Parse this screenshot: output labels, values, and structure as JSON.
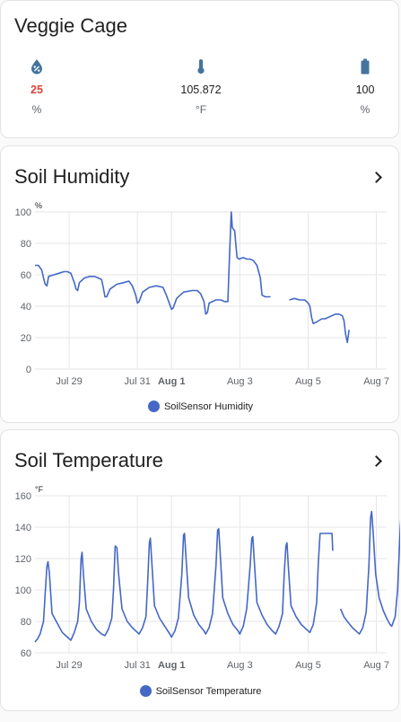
{
  "entities_card": {
    "title": "Veggie Cage",
    "entities": [
      {
        "icon": "water-percent-icon",
        "value": "25",
        "unit": "%",
        "color": "#db4437"
      },
      {
        "icon": "thermometer-icon",
        "value": "105.872",
        "unit": "°F",
        "color": "#212121"
      },
      {
        "icon": "battery-icon",
        "value": "100",
        "unit": "%",
        "color": "#212121"
      }
    ],
    "icon_color": "#44739e"
  },
  "humidity_card": {
    "title": "Soil Humidity",
    "legend": "SoilSensor Humidity",
    "series_color": "#4468c6"
  },
  "temperature_card": {
    "title": "Soil Temperature",
    "legend": "SoilSensor Temperature",
    "series_color": "#4468c6"
  },
  "chart_data": [
    {
      "type": "line",
      "title": "Soil Humidity",
      "ylabel": "%",
      "ylim": [
        0,
        100
      ],
      "yticks": [
        "100",
        "80",
        "60",
        "40",
        "20",
        "0"
      ],
      "xticks": [
        {
          "label": "Jul 29",
          "x": 1.0,
          "bold": false
        },
        {
          "label": "Jul 31",
          "x": 3.0,
          "bold": false
        },
        {
          "label": "Aug 1",
          "x": 4.0,
          "bold": true
        },
        {
          "label": "Aug 3",
          "x": 6.0,
          "bold": false
        },
        {
          "label": "Aug 5",
          "x": 8.0,
          "bold": false
        },
        {
          "label": "Aug 7",
          "x": 10.0,
          "bold": false
        }
      ],
      "xlim": [
        0,
        10.3
      ],
      "grid": true,
      "series": [
        {
          "name": "SoilSensor Humidity",
          "segments": [
            [
              [
                0,
                66
              ],
              [
                0.1,
                66
              ],
              [
                0.2,
                63
              ],
              [
                0.25,
                58
              ],
              [
                0.3,
                54
              ],
              [
                0.35,
                53
              ],
              [
                0.4,
                59
              ],
              [
                0.55,
                60
              ],
              [
                0.7,
                61
              ],
              [
                0.85,
                62
              ],
              [
                0.95,
                62
              ],
              [
                1.05,
                61
              ],
              [
                1.1,
                58
              ],
              [
                1.15,
                55
              ],
              [
                1.2,
                51
              ],
              [
                1.25,
                50
              ],
              [
                1.3,
                55
              ],
              [
                1.45,
                58
              ],
              [
                1.6,
                59
              ],
              [
                1.75,
                59
              ],
              [
                1.85,
                58
              ],
              [
                1.95,
                57
              ],
              [
                2.0,
                52
              ],
              [
                2.05,
                46
              ],
              [
                2.1,
                46
              ],
              [
                2.2,
                51
              ],
              [
                2.4,
                54
              ],
              [
                2.6,
                55
              ],
              [
                2.75,
                56
              ],
              [
                2.85,
                53
              ],
              [
                2.95,
                47
              ],
              [
                3.0,
                42
              ],
              [
                3.05,
                43
              ],
              [
                3.15,
                49
              ],
              [
                3.35,
                52
              ],
              [
                3.55,
                53
              ],
              [
                3.75,
                52
              ],
              [
                3.85,
                47
              ],
              [
                3.95,
                41
              ],
              [
                4.0,
                38
              ],
              [
                4.05,
                39
              ],
              [
                4.15,
                45
              ],
              [
                4.35,
                49
              ],
              [
                4.6,
                50
              ],
              [
                4.75,
                50
              ],
              [
                4.85,
                48
              ],
              [
                4.95,
                43
              ],
              [
                5.0,
                35
              ],
              [
                5.05,
                36
              ],
              [
                5.1,
                42
              ],
              [
                5.3,
                44
              ],
              [
                5.45,
                44
              ],
              [
                5.55,
                43
              ],
              [
                5.65,
                43
              ],
              [
                5.7,
                73
              ],
              [
                5.75,
                100
              ],
              [
                5.78,
                90
              ],
              [
                5.85,
                88
              ],
              [
                5.88,
                80
              ],
              [
                5.92,
                71
              ],
              [
                5.98,
                70
              ],
              [
                6.1,
                71
              ],
              [
                6.2,
                70
              ],
              [
                6.3,
                70
              ],
              [
                6.4,
                69
              ],
              [
                6.5,
                66
              ],
              [
                6.6,
                58
              ],
              [
                6.65,
                47
              ],
              [
                6.75,
                46
              ],
              [
                6.9,
                46
              ]
            ],
            [
              [
                7.45,
                44
              ],
              [
                7.6,
                45
              ],
              [
                7.75,
                44
              ],
              [
                7.9,
                44
              ],
              [
                8.0,
                42
              ],
              [
                8.05,
                40
              ],
              [
                8.1,
                33
              ],
              [
                8.15,
                29
              ],
              [
                8.25,
                30
              ],
              [
                8.4,
                32
              ],
              [
                8.5,
                32
              ],
              [
                8.6,
                33
              ],
              [
                8.7,
                34
              ],
              [
                8.8,
                35
              ],
              [
                8.9,
                35
              ],
              [
                9.0,
                34
              ],
              [
                9.05,
                31
              ],
              [
                9.1,
                22
              ],
              [
                9.15,
                17
              ],
              [
                9.2,
                25
              ]
            ]
          ]
        }
      ]
    },
    {
      "type": "line",
      "title": "Soil Temperature",
      "ylabel": "°F",
      "ylim": [
        60,
        160
      ],
      "yticks": [
        "160",
        "140",
        "120",
        "100",
        "80",
        "60"
      ],
      "xticks": [
        {
          "label": "Jul 29",
          "x": 1.0,
          "bold": false
        },
        {
          "label": "Jul 31",
          "x": 3.0,
          "bold": false
        },
        {
          "label": "Aug 1",
          "x": 4.0,
          "bold": true
        },
        {
          "label": "Aug 3",
          "x": 6.0,
          "bold": false
        },
        {
          "label": "Aug 5",
          "x": 8.0,
          "bold": false
        },
        {
          "label": "Aug 7",
          "x": 10.0,
          "bold": false
        }
      ],
      "xlim": [
        0,
        10.3
      ],
      "grid": true,
      "series": [
        {
          "name": "SoilSensor Temperature",
          "segments": [
            [
              [
                0,
                67
              ],
              [
                0.08,
                69
              ],
              [
                0.15,
                72
              ],
              [
                0.25,
                80
              ],
              [
                0.3,
                98
              ],
              [
                0.35,
                115
              ],
              [
                0.38,
                118
              ],
              [
                0.42,
                111
              ],
              [
                0.5,
                85
              ],
              [
                0.65,
                79
              ],
              [
                0.8,
                73
              ],
              [
                0.95,
                70
              ],
              [
                1.05,
                68
              ],
              [
                1.15,
                73
              ],
              [
                1.25,
                80
              ],
              [
                1.3,
                92
              ],
              [
                1.35,
                120
              ],
              [
                1.38,
                124
              ],
              [
                1.42,
                110
              ],
              [
                1.5,
                88
              ],
              [
                1.65,
                80
              ],
              [
                1.8,
                75
              ],
              [
                1.95,
                72
              ],
              [
                2.05,
                71
              ],
              [
                2.15,
                75
              ],
              [
                2.25,
                82
              ],
              [
                2.3,
                100
              ],
              [
                2.35,
                128
              ],
              [
                2.4,
                127
              ],
              [
                2.45,
                110
              ],
              [
                2.55,
                88
              ],
              [
                2.7,
                80
              ],
              [
                2.85,
                76
              ],
              [
                3.0,
                73
              ],
              [
                3.05,
                72
              ],
              [
                3.15,
                76
              ],
              [
                3.25,
                83
              ],
              [
                3.3,
                105
              ],
              [
                3.35,
                130
              ],
              [
                3.38,
                133
              ],
              [
                3.42,
                118
              ],
              [
                3.5,
                90
              ],
              [
                3.65,
                82
              ],
              [
                3.8,
                77
              ],
              [
                3.95,
                72
              ],
              [
                4.0,
                70
              ],
              [
                4.1,
                74
              ],
              [
                4.2,
                82
              ],
              [
                4.3,
                110
              ],
              [
                4.35,
                135
              ],
              [
                4.38,
                136
              ],
              [
                4.42,
                122
              ],
              [
                4.5,
                95
              ],
              [
                4.65,
                84
              ],
              [
                4.8,
                78
              ],
              [
                4.95,
                74
              ],
              [
                5.0,
                72
              ],
              [
                5.1,
                76
              ],
              [
                5.2,
                85
              ],
              [
                5.3,
                115
              ],
              [
                5.35,
                138
              ],
              [
                5.38,
                139
              ],
              [
                5.42,
                125
              ],
              [
                5.5,
                95
              ],
              [
                5.65,
                85
              ],
              [
                5.8,
                78
              ],
              [
                5.95,
                74
              ],
              [
                6.0,
                72
              ],
              [
                6.1,
                77
              ],
              [
                6.2,
                88
              ],
              [
                6.3,
                115
              ],
              [
                6.35,
                133
              ],
              [
                6.38,
                134
              ],
              [
                6.42,
                120
              ],
              [
                6.5,
                92
              ],
              [
                6.65,
                84
              ],
              [
                6.8,
                78
              ],
              [
                6.95,
                74
              ],
              [
                7.05,
                72
              ],
              [
                7.15,
                77
              ],
              [
                7.25,
                85
              ],
              [
                7.3,
                110
              ],
              [
                7.35,
                128
              ],
              [
                7.38,
                130
              ],
              [
                7.42,
                115
              ],
              [
                7.5,
                90
              ],
              [
                7.65,
                83
              ],
              [
                7.8,
                78
              ],
              [
                7.95,
                75
              ],
              [
                8.05,
                73
              ],
              [
                8.15,
                78
              ],
              [
                8.25,
                92
              ],
              [
                8.3,
                118
              ],
              [
                8.35,
                136
              ],
              [
                8.45,
                136
              ],
              [
                8.6,
                136
              ],
              [
                8.7,
                136
              ],
              [
                8.72,
                125
              ]
            ],
            [
              [
                8.95,
                88
              ],
              [
                9.05,
                83
              ],
              [
                9.15,
                80
              ],
              [
                9.3,
                76
              ],
              [
                9.45,
                73
              ],
              [
                9.5,
                72
              ],
              [
                9.6,
                76
              ],
              [
                9.7,
                86
              ],
              [
                9.78,
                115
              ],
              [
                9.83,
                146
              ],
              [
                9.86,
                150
              ],
              [
                9.9,
                138
              ],
              [
                9.98,
                110
              ],
              [
                10.08,
                95
              ],
              [
                10.2,
                87
              ],
              [
                10.3,
                82
              ],
              [
                10.4,
                78
              ],
              [
                10.45,
                77
              ],
              [
                10.55,
                83
              ],
              [
                10.62,
                100
              ],
              [
                10.7,
                140
              ],
              [
                10.74,
                152
              ],
              [
                10.78,
                150
              ],
              [
                10.8,
                120
              ],
              [
                10.82,
                106
              ]
            ]
          ]
        }
      ]
    }
  ]
}
